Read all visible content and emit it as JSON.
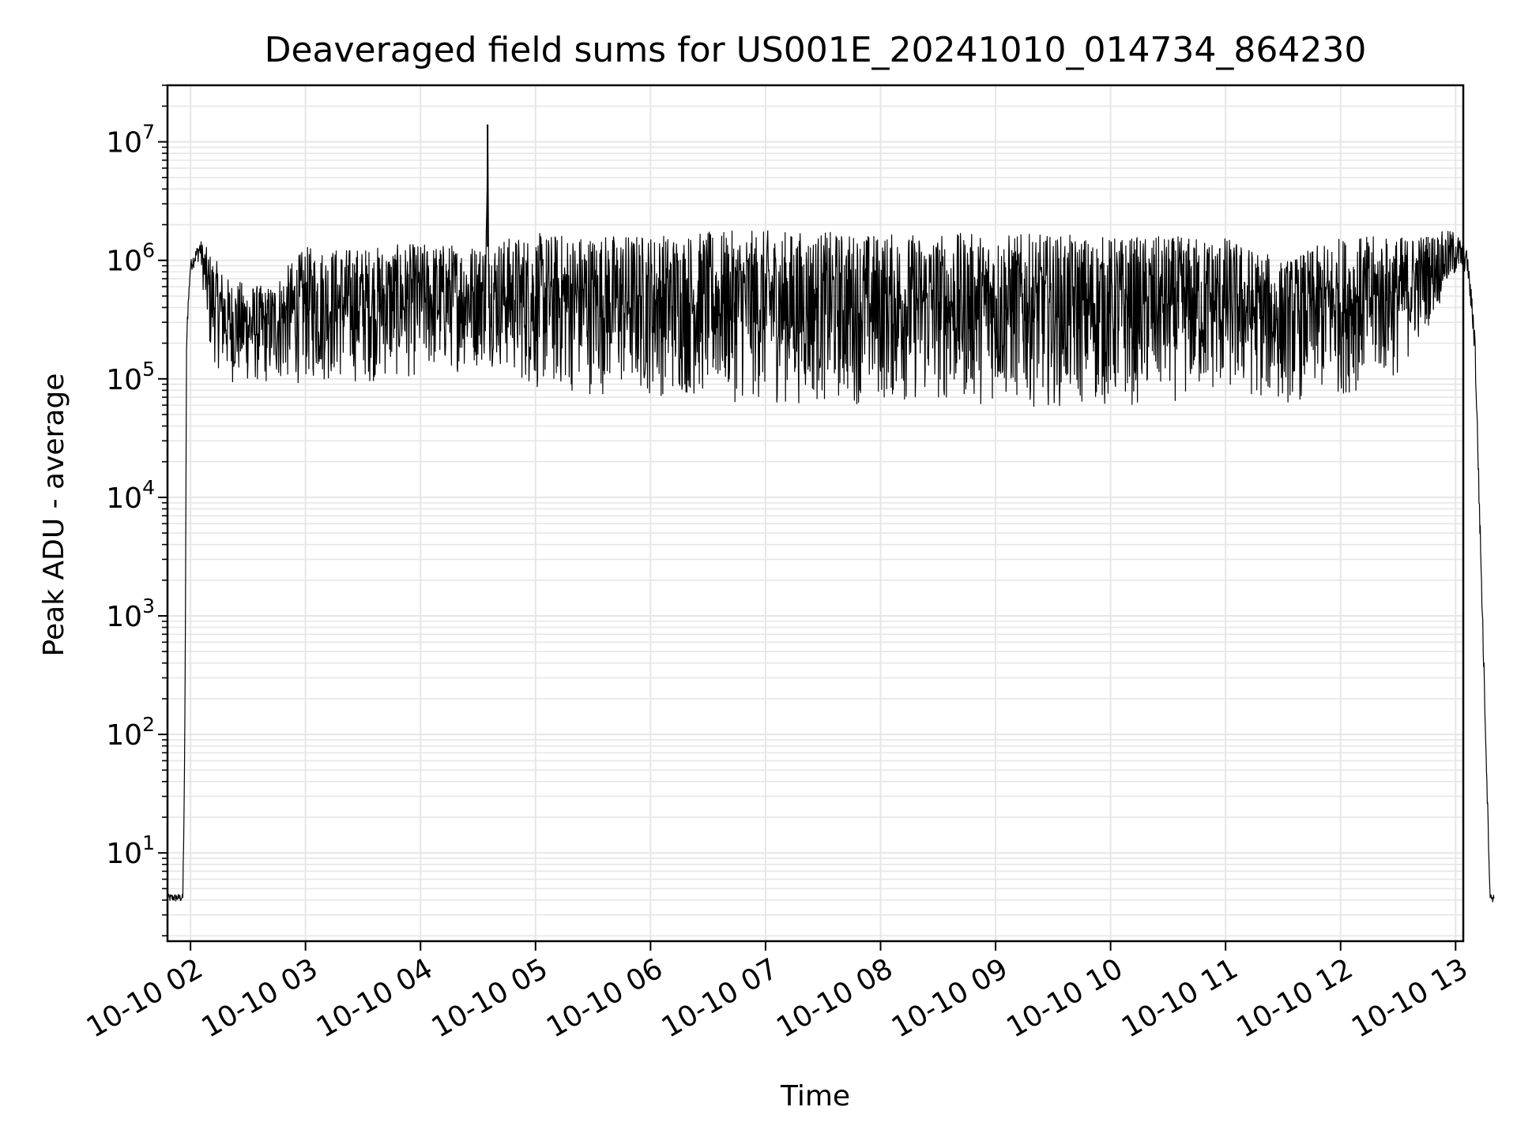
{
  "chart_data": {
    "type": "line",
    "title": "Deaveraged field sums for US001E_20241010_014734_864230",
    "xlabel": "Time",
    "ylabel": "Peak ADU - average",
    "xscale": "time",
    "yscale": "log",
    "xlim": [
      "2024-10-10 01:48",
      "2024-10-10 13:04"
    ],
    "ylim": [
      1.8,
      30000000
    ],
    "xticks": [
      "10-10 02",
      "10-10 03",
      "10-10 04",
      "10-10 05",
      "10-10 06",
      "10-10 07",
      "10-10 08",
      "10-10 09",
      "10-10 10",
      "10-10 11",
      "10-10 12",
      "10-10 13"
    ],
    "yticks": [
      {
        "base": "10",
        "exp": "1"
      },
      {
        "base": "10",
        "exp": "2"
      },
      {
        "base": "10",
        "exp": "3"
      },
      {
        "base": "10",
        "exp": "4"
      },
      {
        "base": "10",
        "exp": "5"
      },
      {
        "base": "10",
        "exp": "6"
      },
      {
        "base": "10",
        "exp": "7"
      }
    ],
    "grid": true,
    "line_color": "#000000",
    "grid_color": "#e6e6e6",
    "series": [
      {
        "x": [
          "2024-10-10 01:48",
          "2024-10-10 01:56",
          "2024-10-10 01:57",
          "2024-10-10 01:58",
          "2024-10-10 02:00",
          "2024-10-10 02:05",
          "2024-10-10 02:10",
          "2024-10-10 02:20",
          "2024-10-10 02:40",
          "2024-10-10 03:00",
          "2024-10-10 03:30",
          "2024-10-10 04:00",
          "2024-10-10 04:30",
          "2024-10-10 04:34",
          "2024-10-10 04:35",
          "2024-10-10 04:36",
          "2024-10-10 05:00",
          "2024-10-10 06:00",
          "2024-10-10 07:00",
          "2024-10-10 08:00",
          "2024-10-10 09:00",
          "2024-10-10 10:00",
          "2024-10-10 11:00",
          "2024-10-10 11:30",
          "2024-10-10 12:00",
          "2024-10-10 12:30",
          "2024-10-10 13:00",
          "2024-10-10 13:06",
          "2024-10-10 13:10",
          "2024-10-10 13:16",
          "2024-10-10 13:18",
          "2024-10-10 13:20"
        ],
        "upper": [
          4.5,
          4.5,
          80,
          300000,
          1000000,
          1500000,
          1200000,
          700000,
          600000,
          1300000,
          1300000,
          1400000,
          1400000,
          1500000,
          14000000,
          1500000,
          1700000,
          1700000,
          1800000,
          1700000,
          1700000,
          1600000,
          1600000,
          1000000,
          1600000,
          1600000,
          1800000,
          1200000,
          300000,
          80,
          4.5,
          4.5
        ],
        "lower": [
          3.8,
          3.8,
          50,
          200000,
          800000,
          1000000,
          150000,
          90000,
          85000,
          90000,
          90000,
          100000,
          120000,
          130000,
          1300000,
          130000,
          75000,
          70000,
          60000,
          60000,
          60000,
          55000,
          70000,
          60000,
          70000,
          100000,
          700000,
          800000,
          150000,
          50,
          3.8,
          3.8
        ]
      }
    ]
  }
}
